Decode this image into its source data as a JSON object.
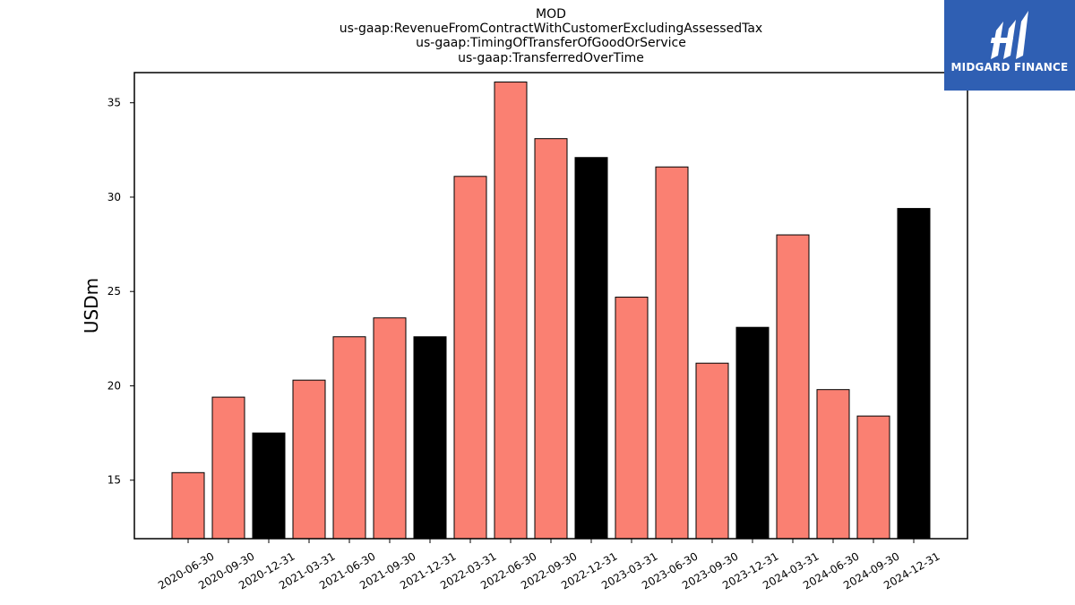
{
  "logo": {
    "text": "MIDGARD FINANCE",
    "background": "#2f5fb3",
    "icon": "midgard-logo-icon"
  },
  "chart_data": {
    "type": "bar",
    "title_lines": [
      "MOD",
      "us-gaap:RevenueFromContractWithCustomerExcludingAssessedTax",
      "us-gaap:TimingOfTransferOfGoodOrService",
      "us-gaap:TransferredOverTime"
    ],
    "xlabel": "",
    "ylabel": "USDm",
    "ylim": [
      11.9,
      36.6
    ],
    "yticks": [
      15,
      20,
      25,
      30,
      35
    ],
    "grid": false,
    "colors": {
      "quarter": "#fa8072",
      "year_end": "#000000"
    },
    "categories": [
      "2020-06-30",
      "2020-09-30",
      "2020-12-31",
      "2021-03-31",
      "2021-06-30",
      "2021-09-30",
      "2021-12-31",
      "2022-03-31",
      "2022-06-30",
      "2022-09-30",
      "2022-12-31",
      "2023-03-31",
      "2023-06-30",
      "2023-09-30",
      "2023-12-31",
      "2024-03-31",
      "2024-06-30",
      "2024-09-30",
      "2024-12-31"
    ],
    "values": [
      15.4,
      19.4,
      17.5,
      20.3,
      22.6,
      23.6,
      22.6,
      31.1,
      36.1,
      33.1,
      32.1,
      24.7,
      31.6,
      21.2,
      23.1,
      28.0,
      19.8,
      18.4,
      29.4
    ]
  }
}
